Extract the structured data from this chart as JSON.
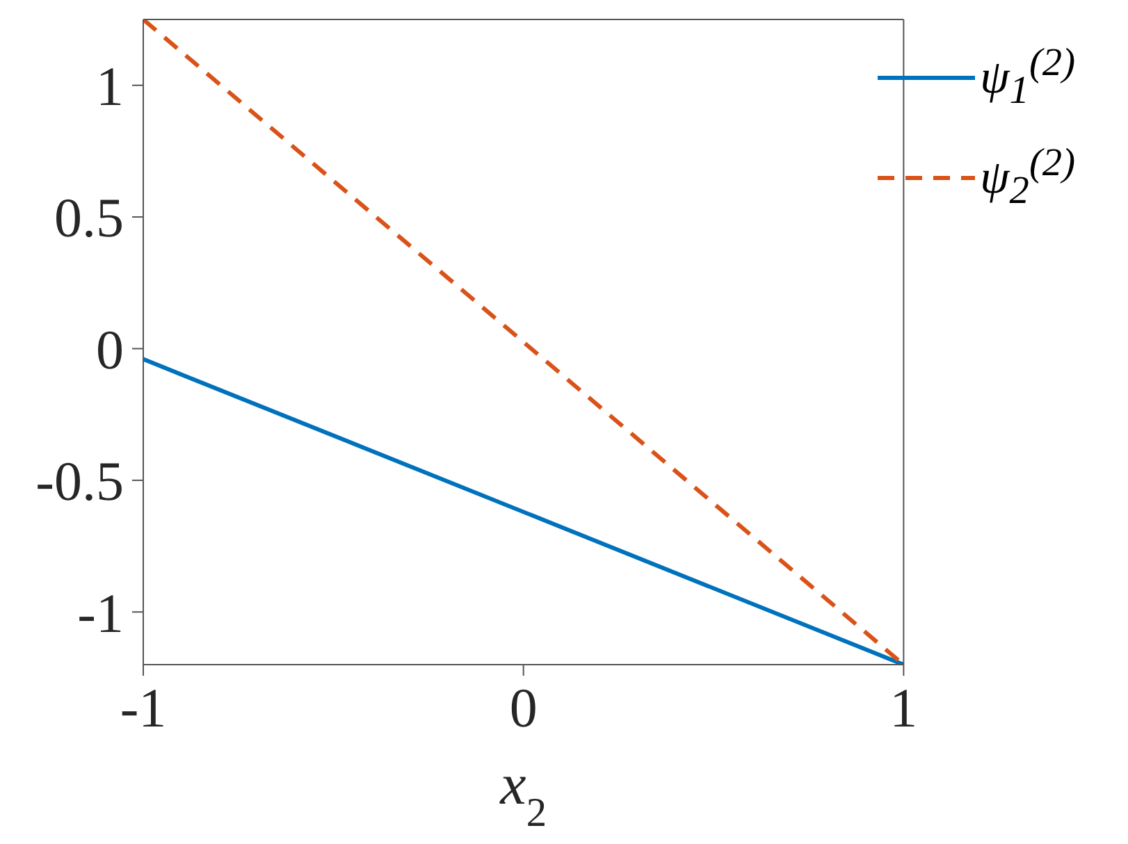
{
  "chart_data": {
    "type": "line",
    "xlabel": "x$_{2}$",
    "x": [
      -1,
      1
    ],
    "series": [
      {
        "name": "ψ$_{1}$$^{(2)}$",
        "color": "#0072bd",
        "values": [
          -0.04,
          -1.2
        ],
        "line_style": "solid"
      },
      {
        "name": "ψ$_{2}$$^{(2)}$",
        "color": "#d95319",
        "values": [
          1.25,
          -1.2
        ],
        "line_style": "dashed"
      }
    ],
    "xlim": [
      -1,
      1
    ],
    "xticks": [
      -1,
      0,
      1
    ],
    "ylim": [
      -1.2,
      1.25
    ],
    "yticks": [
      -1,
      -0.5,
      0,
      0.5,
      1
    ],
    "legend": "top right",
    "marker": "none"
  }
}
